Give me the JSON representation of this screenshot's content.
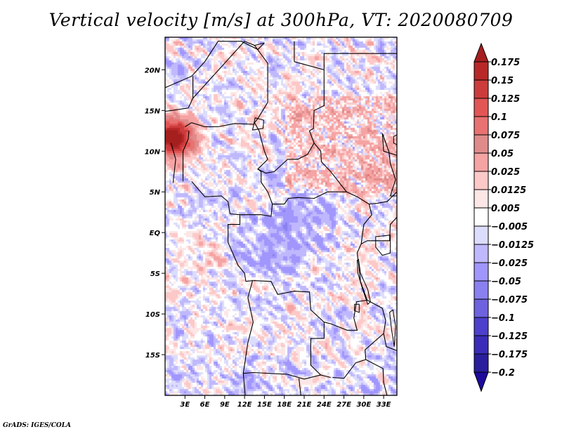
{
  "chart_data": {
    "type": "heatmap",
    "title": "Vertical velocity [m/s] at 300hPa, VT: 2020080709",
    "variable": "Vertical velocity",
    "units": "m/s",
    "level": "300hPa",
    "valid_time": "2020080709",
    "xlabel": "",
    "ylabel": "",
    "xlim": [
      0,
      35
    ],
    "ylim": [
      -20,
      24
    ],
    "x_ticks": [
      {
        "value": 3,
        "label": "3E"
      },
      {
        "value": 6,
        "label": "6E"
      },
      {
        "value": 9,
        "label": "9E"
      },
      {
        "value": 12,
        "label": "12E"
      },
      {
        "value": 15,
        "label": "15E"
      },
      {
        "value": 18,
        "label": "18E"
      },
      {
        "value": 21,
        "label": "21E"
      },
      {
        "value": 24,
        "label": "24E"
      },
      {
        "value": 27,
        "label": "27E"
      },
      {
        "value": 30,
        "label": "30E"
      },
      {
        "value": 33,
        "label": "33E"
      }
    ],
    "y_ticks": [
      {
        "value": 20,
        "label": "20N"
      },
      {
        "value": 15,
        "label": "15N"
      },
      {
        "value": 10,
        "label": "10N"
      },
      {
        "value": 5,
        "label": "5N"
      },
      {
        "value": 0,
        "label": "EQ"
      },
      {
        "value": -5,
        "label": "5S"
      },
      {
        "value": -10,
        "label": "10S"
      },
      {
        "value": -15,
        "label": "15S"
      }
    ],
    "colorbar": {
      "orientation": "vertical",
      "extend": "both",
      "levels": [
        0.175,
        0.15,
        0.125,
        0.1,
        0.075,
        0.05,
        0.025,
        0.0125,
        0.005,
        -0.005,
        -0.0125,
        -0.025,
        -0.05,
        -0.075,
        -0.1,
        -0.125,
        -0.175,
        -0.2
      ],
      "labels": [
        "0.175",
        "0.15",
        "0.125",
        "0.1",
        "0.075",
        "0.05",
        "0.025",
        "0.0125",
        "0.005",
        "−0.005",
        "−0.0125",
        "−0.025",
        "−0.05",
        "−0.075",
        "−0.1",
        "−0.125",
        "−0.175",
        "−0.2"
      ],
      "colors_top_to_bottom": [
        "#a51f1f",
        "#b82828",
        "#cc3c3c",
        "#e25555",
        "#e87272",
        "#e08b8b",
        "#f5a3a3",
        "#fcc8c8",
        "#fde6e6",
        "#ffffff",
        "#dcdcfc",
        "#c0b8fc",
        "#a096fc",
        "#8a80ef",
        "#6e62de",
        "#4c40cc",
        "#3a2cb8",
        "#2a1e9c",
        "#1e0a9c"
      ]
    },
    "regions_summary": [
      {
        "area": "Cameroon/Nigeria highlands ~10-13N, 0-3E",
        "tendency": "strong ascent (red, up to >0.175)"
      },
      {
        "area": "Sudan / South Sudan ~8-16N, 24-35E",
        "tendency": "mixed ascent, speckled red"
      },
      {
        "area": "Congo basin ~EQ, 12-27E",
        "tendency": "mostly weak descent (blue)"
      },
      {
        "area": "Angola / Zambia ~10-18S",
        "tendency": "alternating NW-SE streaks of red and blue"
      }
    ],
    "grid": false,
    "legend": "right"
  },
  "footer": "GrADS: IGES/COLA"
}
